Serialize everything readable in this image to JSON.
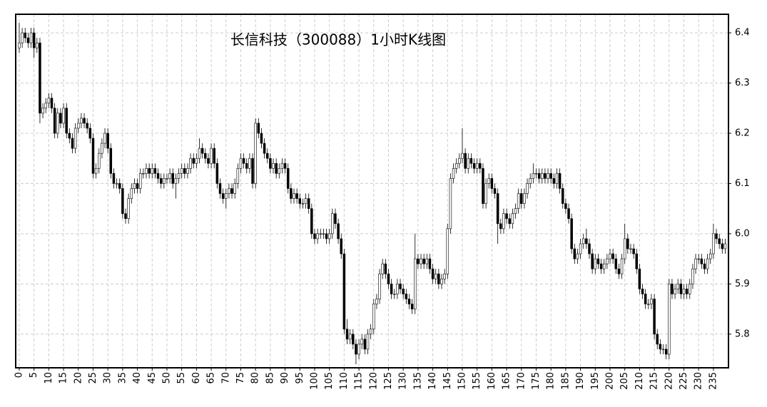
{
  "chart_data": {
    "type": "candlestick",
    "title": "长信科技（300088）1小时K线图",
    "x": [
      0,
      1,
      2,
      3,
      4,
      5,
      6,
      7,
      8,
      9,
      10,
      11,
      12,
      13,
      14,
      15,
      16,
      17,
      18,
      19,
      20,
      21,
      22,
      23,
      24,
      25,
      26,
      27,
      28,
      29,
      30,
      31,
      32,
      33,
      34,
      35,
      36,
      37,
      38,
      39,
      40,
      41,
      42,
      43,
      44,
      45,
      46,
      47,
      48,
      49,
      50,
      51,
      52,
      53,
      54,
      55,
      56,
      57,
      58,
      59,
      60,
      61,
      62,
      63,
      64,
      65,
      66,
      67,
      68,
      69,
      70,
      71,
      72,
      73,
      74,
      75,
      76,
      77,
      78,
      79,
      80,
      81,
      82,
      83,
      84,
      85,
      86,
      87,
      88,
      89,
      90,
      91,
      92,
      93,
      94,
      95,
      96,
      97,
      98,
      99,
      100,
      101,
      102,
      103,
      104,
      105,
      106,
      107,
      108,
      109,
      110,
      111,
      112,
      113,
      114,
      115,
      116,
      117,
      118,
      119,
      120,
      121,
      122,
      123,
      124,
      125,
      126,
      127,
      128,
      129,
      130,
      131,
      132,
      133,
      134,
      135,
      136,
      137,
      138,
      139,
      140,
      141,
      142,
      143,
      144,
      145,
      146,
      147,
      148,
      149,
      150,
      151,
      152,
      153,
      154,
      155,
      156,
      157,
      158,
      159,
      160,
      161,
      162,
      163,
      164,
      165,
      166,
      167,
      168,
      169,
      170,
      171,
      172,
      173,
      174,
      175,
      176,
      177,
      178,
      179,
      180,
      181,
      182,
      183,
      184,
      185,
      186,
      187,
      188,
      189,
      190,
      191,
      192,
      193,
      194,
      195,
      196,
      197,
      198,
      199,
      200,
      201,
      202,
      203,
      204,
      205,
      206,
      207,
      208,
      209,
      210,
      211,
      212,
      213,
      214,
      215,
      216,
      217,
      218,
      219,
      220,
      221,
      222,
      223,
      224,
      225,
      226,
      227,
      228,
      229,
      230,
      231,
      232,
      233,
      234,
      235,
      236,
      237,
      238,
      239
    ],
    "open": [
      6.37,
      6.38,
      6.4,
      6.39,
      6.38,
      6.4,
      6.37,
      6.38,
      6.24,
      6.25,
      6.26,
      6.27,
      6.25,
      6.2,
      6.24,
      6.22,
      6.25,
      6.2,
      6.19,
      6.17,
      6.21,
      6.22,
      6.23,
      6.22,
      6.21,
      6.19,
      6.12,
      6.13,
      6.16,
      6.18,
      6.2,
      6.17,
      6.12,
      6.1,
      6.1,
      6.09,
      6.04,
      6.03,
      6.07,
      6.09,
      6.1,
      6.09,
      6.12,
      6.12,
      6.13,
      6.12,
      6.13,
      6.12,
      6.11,
      6.1,
      6.11,
      6.11,
      6.12,
      6.1,
      6.11,
      6.12,
      6.13,
      6.12,
      6.13,
      6.15,
      6.14,
      6.15,
      6.17,
      6.16,
      6.15,
      6.14,
      6.17,
      6.14,
      6.1,
      6.08,
      6.07,
      6.08,
      6.09,
      6.08,
      6.1,
      6.13,
      6.15,
      6.14,
      6.13,
      6.15,
      6.1,
      6.22,
      6.2,
      6.18,
      6.16,
      6.15,
      6.13,
      6.14,
      6.12,
      6.13,
      6.14,
      6.13,
      6.09,
      6.07,
      6.08,
      6.07,
      6.06,
      6.06,
      6.07,
      6.05,
      6.0,
      5.99,
      6.0,
      6.0,
      6.0,
      5.99,
      6.0,
      6.04,
      6.02,
      5.99,
      5.96,
      5.81,
      5.79,
      5.8,
      5.78,
      5.76,
      5.78,
      5.79,
      5.77,
      5.8,
      5.81,
      5.86,
      5.87,
      5.92,
      5.94,
      5.92,
      5.9,
      5.88,
      5.88,
      5.9,
      5.89,
      5.88,
      5.87,
      5.86,
      5.85,
      5.95,
      5.94,
      5.95,
      5.94,
      5.95,
      5.93,
      5.91,
      5.92,
      5.9,
      5.91,
      5.92,
      6.01,
      6.11,
      6.13,
      6.14,
      6.15,
      6.16,
      6.13,
      6.15,
      6.14,
      6.13,
      6.14,
      6.13,
      6.06,
      6.1,
      6.11,
      6.09,
      6.08,
      6.02,
      6.01,
      6.04,
      6.03,
      6.02,
      6.04,
      6.05,
      6.08,
      6.06,
      6.08,
      6.1,
      6.11,
      6.12,
      6.12,
      6.11,
      6.12,
      6.11,
      6.12,
      6.11,
      6.1,
      6.12,
      6.09,
      6.06,
      6.05,
      6.03,
      5.97,
      5.95,
      5.96,
      5.98,
      5.99,
      5.98,
      5.96,
      5.93,
      5.95,
      5.94,
      5.93,
      5.94,
      5.95,
      5.96,
      5.95,
      5.93,
      5.92,
      5.95,
      5.99,
      5.97,
      5.97,
      5.96,
      5.93,
      5.89,
      5.88,
      5.86,
      5.86,
      5.87,
      5.8,
      5.78,
      5.77,
      5.77,
      5.76,
      5.9,
      5.88,
      5.89,
      5.9,
      5.88,
      5.89,
      5.88,
      5.9,
      5.93,
      5.95,
      5.95,
      5.94,
      5.93,
      5.95,
      5.96,
      6.0,
      5.99,
      5.98,
      5.97
    ],
    "high": [
      6.42,
      6.41,
      6.41,
      6.4,
      6.41,
      6.41,
      6.39,
      6.39,
      6.26,
      6.27,
      6.28,
      6.28,
      6.26,
      6.25,
      6.25,
      6.26,
      6.26,
      6.21,
      6.2,
      6.22,
      6.23,
      6.24,
      6.24,
      6.23,
      6.22,
      6.2,
      6.14,
      6.17,
      6.19,
      6.21,
      6.21,
      6.18,
      6.13,
      6.11,
      6.11,
      6.1,
      6.05,
      6.08,
      6.1,
      6.11,
      6.11,
      6.13,
      6.13,
      6.14,
      6.14,
      6.14,
      6.14,
      6.13,
      6.12,
      6.12,
      6.12,
      6.13,
      6.13,
      6.12,
      6.13,
      6.14,
      6.14,
      6.14,
      6.16,
      6.16,
      6.16,
      6.19,
      6.18,
      6.17,
      6.16,
      6.18,
      6.18,
      6.15,
      6.11,
      6.09,
      6.09,
      6.1,
      6.1,
      6.11,
      6.14,
      6.16,
      6.16,
      6.15,
      6.16,
      6.16,
      6.23,
      6.23,
      6.21,
      6.19,
      6.17,
      6.16,
      6.15,
      6.15,
      6.14,
      6.15,
      6.15,
      6.14,
      6.1,
      6.09,
      6.09,
      6.08,
      6.07,
      6.08,
      6.08,
      6.06,
      6.01,
      6.01,
      6.01,
      6.01,
      6.01,
      6.01,
      6.05,
      6.05,
      6.03,
      6.0,
      5.97,
      5.83,
      5.81,
      5.81,
      5.79,
      5.79,
      5.8,
      5.8,
      5.81,
      5.82,
      5.87,
      5.88,
      5.93,
      5.95,
      5.95,
      5.93,
      5.91,
      5.89,
      5.91,
      5.91,
      5.9,
      5.89,
      5.88,
      5.87,
      6.0,
      5.96,
      5.96,
      5.96,
      5.96,
      5.96,
      5.94,
      5.93,
      5.93,
      5.92,
      5.93,
      6.02,
      6.12,
      6.14,
      6.15,
      6.16,
      6.21,
      6.17,
      6.16,
      6.16,
      6.15,
      6.15,
      6.15,
      6.14,
      6.11,
      6.12,
      6.12,
      6.1,
      6.09,
      6.03,
      6.05,
      6.05,
      6.04,
      6.05,
      6.06,
      6.09,
      6.09,
      6.09,
      6.11,
      6.12,
      6.14,
      6.13,
      6.13,
      6.13,
      6.13,
      6.13,
      6.13,
      6.12,
      6.13,
      6.13,
      6.1,
      6.07,
      6.06,
      6.04,
      5.98,
      5.97,
      5.99,
      6.0,
      6.01,
      5.99,
      5.97,
      5.96,
      5.96,
      5.95,
      5.95,
      5.96,
      5.97,
      5.97,
      5.96,
      5.94,
      5.96,
      6.02,
      6.0,
      5.98,
      5.98,
      5.97,
      5.94,
      5.9,
      5.89,
      5.87,
      5.88,
      5.88,
      5.81,
      5.79,
      5.78,
      5.78,
      5.91,
      5.91,
      5.9,
      5.91,
      5.91,
      5.9,
      5.9,
      5.91,
      5.94,
      5.96,
      5.96,
      5.96,
      5.95,
      5.96,
      5.97,
      6.02,
      6.01,
      6.0,
      5.99,
      5.99
    ],
    "low": [
      6.36,
      6.37,
      6.38,
      6.37,
      6.37,
      6.35,
      6.36,
      6.22,
      6.23,
      6.24,
      6.25,
      6.24,
      6.19,
      6.19,
      6.21,
      6.21,
      6.19,
      6.18,
      6.16,
      6.16,
      6.2,
      6.21,
      6.21,
      6.2,
      6.18,
      6.11,
      6.11,
      6.12,
      6.15,
      6.17,
      6.16,
      6.11,
      6.09,
      6.09,
      6.08,
      6.03,
      6.02,
      6.02,
      6.06,
      6.08,
      6.08,
      6.08,
      6.11,
      6.11,
      6.11,
      6.11,
      6.11,
      6.1,
      6.09,
      6.09,
      6.1,
      6.1,
      6.09,
      6.07,
      6.1,
      6.11,
      6.11,
      6.11,
      6.12,
      6.13,
      6.13,
      6.14,
      6.15,
      6.14,
      6.13,
      6.13,
      6.13,
      6.09,
      6.07,
      6.06,
      6.05,
      6.07,
      6.07,
      6.07,
      6.09,
      6.12,
      6.13,
      6.12,
      6.12,
      6.09,
      6.09,
      6.19,
      6.17,
      6.15,
      6.14,
      6.12,
      6.12,
      6.11,
      6.11,
      6.12,
      6.12,
      6.08,
      6.06,
      6.06,
      6.06,
      6.05,
      6.05,
      6.05,
      6.04,
      5.99,
      5.98,
      5.98,
      5.99,
      5.99,
      5.98,
      5.98,
      5.99,
      6.01,
      5.98,
      5.95,
      5.8,
      5.78,
      5.78,
      5.77,
      5.74,
      5.75,
      5.77,
      5.76,
      5.76,
      5.79,
      5.8,
      5.85,
      5.86,
      5.91,
      5.91,
      5.89,
      5.87,
      5.87,
      5.87,
      5.88,
      5.87,
      5.86,
      5.85,
      5.84,
      5.84,
      5.93,
      5.93,
      5.93,
      5.93,
      5.92,
      5.9,
      5.9,
      5.89,
      5.89,
      5.9,
      5.91,
      6.0,
      6.1,
      6.12,
      6.13,
      6.14,
      6.12,
      6.12,
      6.13,
      6.12,
      6.12,
      6.12,
      6.05,
      6.05,
      6.09,
      6.08,
      6.07,
      5.98,
      6.0,
      6.0,
      6.02,
      6.01,
      6.01,
      6.03,
      6.04,
      6.05,
      6.05,
      6.07,
      6.09,
      6.1,
      6.11,
      6.1,
      6.1,
      6.1,
      6.1,
      6.1,
      6.09,
      6.09,
      6.08,
      6.05,
      6.04,
      6.02,
      5.96,
      5.94,
      5.94,
      5.95,
      5.97,
      5.97,
      5.95,
      5.92,
      5.92,
      5.93,
      5.92,
      5.92,
      5.93,
      5.94,
      5.94,
      5.92,
      5.91,
      5.91,
      5.94,
      5.96,
      5.96,
      5.95,
      5.92,
      5.88,
      5.87,
      5.85,
      5.85,
      5.85,
      5.79,
      5.77,
      5.76,
      5.76,
      5.75,
      5.75,
      5.87,
      5.87,
      5.88,
      5.87,
      5.87,
      5.87,
      5.87,
      5.89,
      5.92,
      5.94,
      5.93,
      5.92,
      5.92,
      5.94,
      5.95,
      5.98,
      5.97,
      5.96,
      5.96
    ],
    "close": [
      6.38,
      6.4,
      6.39,
      6.38,
      6.4,
      6.37,
      6.38,
      6.24,
      6.25,
      6.26,
      6.27,
      6.25,
      6.2,
      6.24,
      6.22,
      6.25,
      6.2,
      6.19,
      6.17,
      6.21,
      6.22,
      6.23,
      6.22,
      6.21,
      6.19,
      6.12,
      6.13,
      6.16,
      6.18,
      6.2,
      6.17,
      6.12,
      6.1,
      6.1,
      6.09,
      6.04,
      6.03,
      6.07,
      6.09,
      6.1,
      6.09,
      6.12,
      6.12,
      6.13,
      6.12,
      6.13,
      6.12,
      6.11,
      6.1,
      6.11,
      6.11,
      6.12,
      6.1,
      6.11,
      6.12,
      6.13,
      6.12,
      6.13,
      6.15,
      6.14,
      6.15,
      6.17,
      6.16,
      6.15,
      6.14,
      6.17,
      6.14,
      6.1,
      6.08,
      6.07,
      6.08,
      6.09,
      6.08,
      6.1,
      6.13,
      6.15,
      6.14,
      6.13,
      6.15,
      6.1,
      6.22,
      6.2,
      6.18,
      6.16,
      6.15,
      6.13,
      6.14,
      6.12,
      6.13,
      6.14,
      6.13,
      6.09,
      6.07,
      6.08,
      6.07,
      6.06,
      6.06,
      6.07,
      6.05,
      6.0,
      5.99,
      6.0,
      6.0,
      6.0,
      5.99,
      6.0,
      6.04,
      6.02,
      5.99,
      5.96,
      5.81,
      5.79,
      5.8,
      5.78,
      5.76,
      5.78,
      5.79,
      5.77,
      5.8,
      5.81,
      5.86,
      5.87,
      5.92,
      5.94,
      5.92,
      5.9,
      5.88,
      5.88,
      5.9,
      5.89,
      5.88,
      5.87,
      5.86,
      5.85,
      5.95,
      5.94,
      5.95,
      5.94,
      5.95,
      5.93,
      5.91,
      5.92,
      5.9,
      5.91,
      5.92,
      6.01,
      6.11,
      6.13,
      6.14,
      6.15,
      6.16,
      6.13,
      6.15,
      6.14,
      6.13,
      6.14,
      6.13,
      6.06,
      6.1,
      6.11,
      6.09,
      6.08,
      6.02,
      6.01,
      6.04,
      6.03,
      6.02,
      6.04,
      6.05,
      6.08,
      6.06,
      6.08,
      6.1,
      6.11,
      6.12,
      6.12,
      6.11,
      6.12,
      6.11,
      6.12,
      6.11,
      6.1,
      6.12,
      6.09,
      6.06,
      6.05,
      6.03,
      5.97,
      5.95,
      5.96,
      5.98,
      5.99,
      5.98,
      5.96,
      5.93,
      5.95,
      5.94,
      5.93,
      5.94,
      5.95,
      5.96,
      5.95,
      5.93,
      5.92,
      5.95,
      5.99,
      5.97,
      5.97,
      5.96,
      5.93,
      5.89,
      5.88,
      5.86,
      5.86,
      5.87,
      5.8,
      5.78,
      5.77,
      5.77,
      5.76,
      5.9,
      5.88,
      5.89,
      5.9,
      5.88,
      5.89,
      5.88,
      5.9,
      5.93,
      5.95,
      5.95,
      5.94,
      5.93,
      5.95,
      5.96,
      6.0,
      5.99,
      5.98,
      5.97,
      5.98
    ],
    "up_color": "#ffffff",
    "down_color": "#000000",
    "edge_color": "#000000",
    "xlim": [
      -1.2,
      240.1
    ],
    "xticks": [
      0,
      5,
      10,
      15,
      20,
      25,
      30,
      35,
      40,
      45,
      50,
      55,
      60,
      65,
      70,
      75,
      80,
      85,
      90,
      95,
      100,
      105,
      110,
      115,
      120,
      125,
      130,
      135,
      140,
      145,
      150,
      155,
      160,
      165,
      170,
      175,
      180,
      185,
      190,
      195,
      200,
      205,
      210,
      215,
      220,
      225,
      230,
      235
    ],
    "ylim": [
      5.733,
      6.437
    ],
    "yticks": [
      5.8,
      5.9,
      {
        "value": 6,
        "label": "6.0"
      },
      6.1,
      6.2,
      6.3,
      6.4
    ],
    "grid": true,
    "y_axis_side": "right"
  }
}
